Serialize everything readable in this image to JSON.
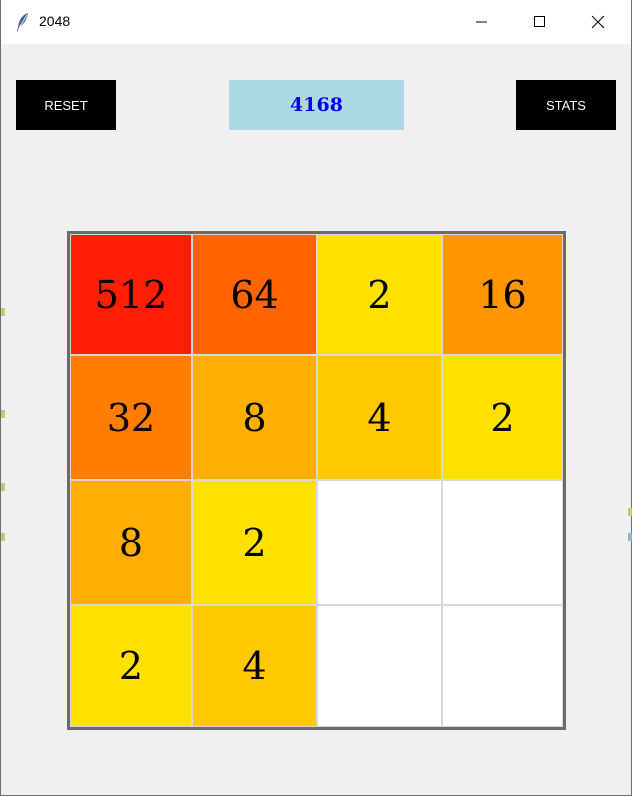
{
  "window": {
    "title": "2048",
    "app_icon": "feather-icon"
  },
  "toolbar": {
    "reset_label": "RESET",
    "stats_label": "STATS"
  },
  "score": "4168",
  "board": [
    [
      {
        "value": "512",
        "color": "#ff1e05"
      },
      {
        "value": "64",
        "color": "#ff6400"
      },
      {
        "value": "2",
        "color": "#ffe100"
      },
      {
        "value": "16",
        "color": "#ff9600"
      }
    ],
    [
      {
        "value": "32",
        "color": "#ff7d00"
      },
      {
        "value": "8",
        "color": "#ffaf00"
      },
      {
        "value": "4",
        "color": "#ffc800"
      },
      {
        "value": "2",
        "color": "#ffe100"
      }
    ],
    [
      {
        "value": "8",
        "color": "#ffaf00"
      },
      {
        "value": "2",
        "color": "#ffe100"
      },
      {
        "value": "",
        "color": "#ffffff"
      },
      {
        "value": "",
        "color": "#ffffff"
      }
    ],
    [
      {
        "value": "2",
        "color": "#ffe100"
      },
      {
        "value": "4",
        "color": "#ffc800"
      },
      {
        "value": "",
        "color": "#ffffff"
      },
      {
        "value": "",
        "color": "#ffffff"
      }
    ]
  ]
}
